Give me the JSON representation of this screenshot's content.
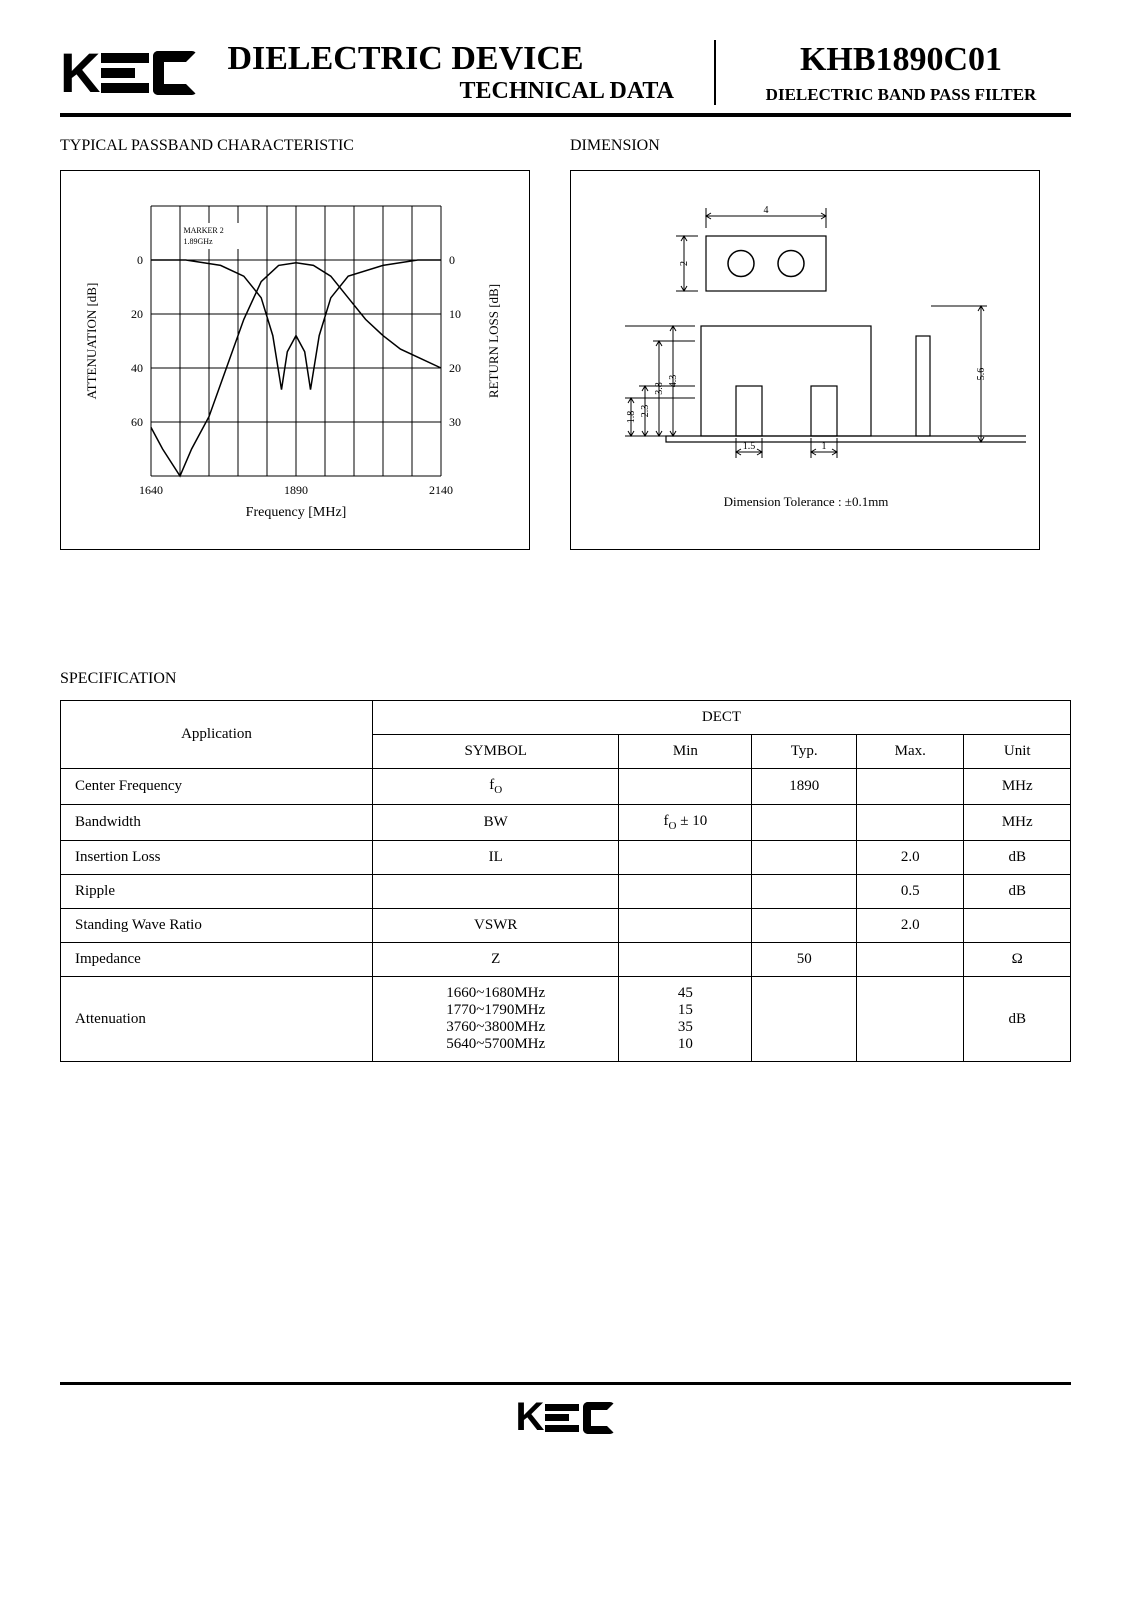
{
  "header": {
    "title_main": "DIELECTRIC DEVICE",
    "title_sub": "TECHNICAL DATA",
    "part_number": "KHB1890C01",
    "part_desc": "DIELECTRIC BAND PASS FILTER"
  },
  "chart": {
    "section_title": "TYPICAL PASSBAND CHARACTERISTIC",
    "type": "line",
    "x_label": "Frequency [MHz]",
    "y_left_label": "ATTENUATION [dB]",
    "y_right_label": "RETURN LOSS [dB]",
    "x_ticks": [
      1640,
      1890,
      2140
    ],
    "y_left_ticks": [
      0,
      20,
      40,
      60
    ],
    "y_right_ticks": [
      0,
      10,
      20,
      30
    ],
    "xlim": [
      1640,
      2140
    ],
    "ylim_left": [
      80,
      -20
    ],
    "marker_label": "MARKER 2\n1.89GHz",
    "grid_cols": 10,
    "grid_rows": 5,
    "line_color": "#000000",
    "grid_color": "#000000",
    "background_color": "#ffffff",
    "font_size_axis": 11,
    "font_size_tick": 12,
    "attenuation_series": [
      {
        "x": 1640,
        "y": 62
      },
      {
        "x": 1660,
        "y": 70
      },
      {
        "x": 1690,
        "y": 80
      },
      {
        "x": 1710,
        "y": 70
      },
      {
        "x": 1740,
        "y": 58
      },
      {
        "x": 1770,
        "y": 40
      },
      {
        "x": 1800,
        "y": 22
      },
      {
        "x": 1830,
        "y": 8
      },
      {
        "x": 1860,
        "y": 2
      },
      {
        "x": 1890,
        "y": 1
      },
      {
        "x": 1920,
        "y": 2
      },
      {
        "x": 1950,
        "y": 6
      },
      {
        "x": 1980,
        "y": 14
      },
      {
        "x": 2010,
        "y": 22
      },
      {
        "x": 2040,
        "y": 28
      },
      {
        "x": 2070,
        "y": 33
      },
      {
        "x": 2100,
        "y": 36
      },
      {
        "x": 2140,
        "y": 40
      }
    ],
    "return_loss_series": [
      {
        "x": 1640,
        "y": 0
      },
      {
        "x": 1700,
        "y": 0
      },
      {
        "x": 1760,
        "y": 1
      },
      {
        "x": 1800,
        "y": 3
      },
      {
        "x": 1830,
        "y": 7
      },
      {
        "x": 1850,
        "y": 14
      },
      {
        "x": 1865,
        "y": 24
      },
      {
        "x": 1875,
        "y": 17
      },
      {
        "x": 1890,
        "y": 14
      },
      {
        "x": 1905,
        "y": 17
      },
      {
        "x": 1915,
        "y": 24
      },
      {
        "x": 1930,
        "y": 14
      },
      {
        "x": 1950,
        "y": 7
      },
      {
        "x": 1980,
        "y": 3
      },
      {
        "x": 2040,
        "y": 1
      },
      {
        "x": 2100,
        "y": 0
      },
      {
        "x": 2140,
        "y": 0
      }
    ]
  },
  "dimension": {
    "section_title": "DIMENSION",
    "tolerance_text": "Dimension Tolerance : ±0.1mm",
    "dims": {
      "top_w": "4",
      "left_h": "2",
      "body_h": "4.3",
      "h2": "3.8",
      "h3": "2.3",
      "h4": "1.8",
      "w1": "1.5",
      "w2": "1",
      "right_h": "5.6"
    },
    "line_color": "#000000",
    "font_size_dim": 10,
    "font_size_note": 13
  },
  "spec": {
    "title": "SPECIFICATION",
    "application_label": "Application",
    "application_value": "DECT",
    "headers": [
      "SYMBOL",
      "Min",
      "Typ.",
      "Max.",
      "Unit"
    ],
    "rows": [
      {
        "param": "Center Frequency",
        "symbol": "f_O",
        "min": "",
        "typ": "1890",
        "max": "",
        "unit": "MHz"
      },
      {
        "param": "Bandwidth",
        "symbol": "BW",
        "min": "f_O ± 10",
        "typ": "",
        "max": "",
        "unit": "MHz"
      },
      {
        "param": "Insertion Loss",
        "symbol": "IL",
        "min": "",
        "typ": "",
        "max": "2.0",
        "unit": "dB"
      },
      {
        "param": "Ripple",
        "symbol": "",
        "min": "",
        "typ": "",
        "max": "0.5",
        "unit": "dB"
      },
      {
        "param": "Standing Wave Ratio",
        "symbol": "VSWR",
        "min": "",
        "typ": "",
        "max": "2.0",
        "unit": ""
      },
      {
        "param": "Impedance",
        "symbol": "Z",
        "min": "",
        "typ": "50",
        "max": "",
        "unit": "Ω"
      },
      {
        "param": "Attenuation",
        "symbol": "1660~1680MHz\n1770~1790MHz\n3760~3800MHz\n5640~5700MHz",
        "min": "45\n15\n35\n10",
        "typ": "",
        "max": "",
        "unit": "dB"
      }
    ]
  }
}
